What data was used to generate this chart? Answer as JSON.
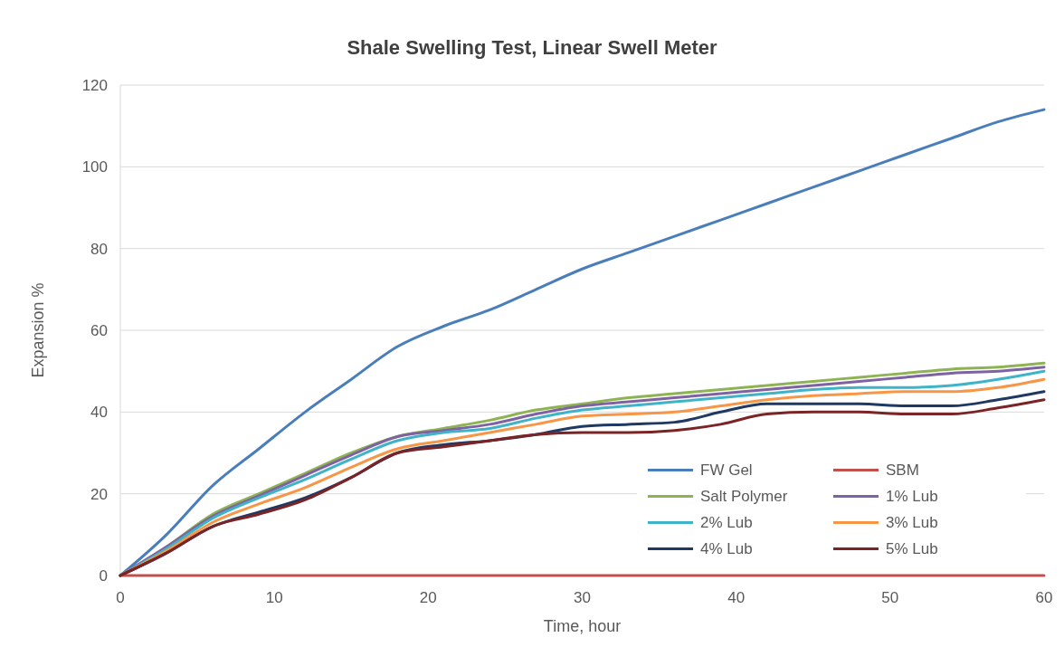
{
  "chart_data": {
    "type": "line",
    "title": "Shale Swelling Test, Linear Swell Meter",
    "xlabel": "Time, hour",
    "ylabel": "Expansion %",
    "x": [
      0,
      3,
      6,
      9,
      12,
      15,
      18,
      21,
      24,
      27,
      30,
      33,
      36,
      39,
      42,
      45,
      48,
      51,
      54,
      57,
      60
    ],
    "xlim": [
      0,
      60
    ],
    "xticks": [
      0,
      10,
      20,
      30,
      40,
      50,
      60
    ],
    "ylim": [
      0,
      120
    ],
    "yticks": [
      0,
      20,
      40,
      60,
      80,
      100,
      120
    ],
    "grid": "y",
    "legend": "bottom right",
    "line_style": "solid",
    "marker": "none",
    "series": [
      {
        "name": "FW Gel",
        "color": "#4a7ebb",
        "values": [
          0,
          10,
          22,
          31,
          40,
          48,
          56,
          61,
          65,
          70,
          75,
          79,
          83,
          87,
          91,
          95,
          99,
          103,
          107,
          111,
          114
        ]
      },
      {
        "name": "SBM",
        "color": "#c0504d",
        "values": [
          0,
          0,
          0,
          0,
          0,
          0,
          0,
          0,
          0,
          0,
          0,
          0,
          0,
          0,
          0,
          0,
          0,
          0,
          0,
          0,
          0
        ]
      },
      {
        "name": "Salt Polymer",
        "color": "#8db352",
        "values": [
          0,
          7,
          15,
          20,
          25,
          30,
          34,
          36,
          38,
          40.5,
          42,
          43.5,
          44.5,
          45.5,
          46.5,
          47.5,
          48.5,
          49.5,
          50.5,
          51,
          52
        ]
      },
      {
        "name": "1% Lub",
        "color": "#7f62a3",
        "values": [
          0,
          7,
          14.5,
          19.5,
          24.5,
          29.5,
          34,
          35.5,
          37,
          39.5,
          41.5,
          42.5,
          43.5,
          44.5,
          45.5,
          46.5,
          47.5,
          48.5,
          49.5,
          50,
          51
        ]
      },
      {
        "name": "2% Lub",
        "color": "#3fb3c8",
        "values": [
          0,
          6.5,
          14,
          19,
          23.5,
          28.5,
          33,
          35,
          36,
          38.5,
          40.5,
          41.5,
          42.5,
          43.5,
          44.5,
          45.5,
          46,
          46,
          46.5,
          48,
          50
        ]
      },
      {
        "name": "3% Lub",
        "color": "#f79646",
        "values": [
          0,
          6,
          13,
          17.5,
          21.5,
          26.5,
          31,
          33,
          35,
          37,
          39,
          39.5,
          40,
          41.5,
          43,
          44,
          44.5,
          45,
          45,
          46,
          48
        ]
      },
      {
        "name": "4% Lub",
        "color": "#1f3864",
        "values": [
          0,
          5.5,
          12,
          15.5,
          19,
          24,
          30,
          32,
          33,
          34.5,
          36.5,
          37,
          37.5,
          40,
          42,
          42,
          42,
          41.5,
          41.5,
          43,
          45
        ]
      },
      {
        "name": "5% Lub",
        "color": "#7b2426",
        "values": [
          0,
          5.5,
          12,
          15,
          18.5,
          24,
          30,
          31.5,
          33,
          34.5,
          35,
          35,
          35.5,
          37,
          39.5,
          40,
          40,
          39.5,
          39.5,
          41,
          43
        ]
      }
    ]
  }
}
